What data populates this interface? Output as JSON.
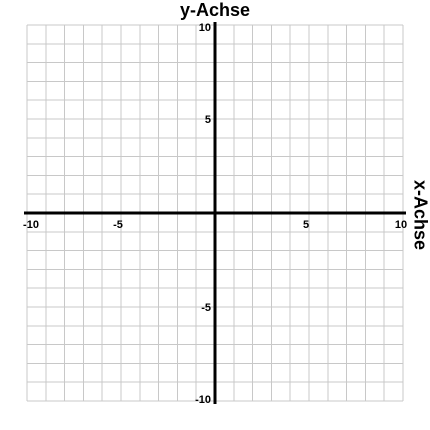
{
  "chart_data": {
    "type": "scatter",
    "title": "",
    "xlabel": "x-Achse",
    "ylabel": "y-Achse",
    "xlim": [
      -10,
      10
    ],
    "ylim": [
      -10,
      10
    ],
    "grid": true,
    "grid_step": 1,
    "x_ticks": [
      {
        "value": -10,
        "label": "-10"
      },
      {
        "value": -5,
        "label": "-5"
      },
      {
        "value": 5,
        "label": "5"
      },
      {
        "value": 10,
        "label": "10"
      }
    ],
    "y_ticks": [
      {
        "value": 10,
        "label": "10"
      },
      {
        "value": 5,
        "label": "5"
      },
      {
        "value": -5,
        "label": "-5"
      },
      {
        "value": -10,
        "label": "-10"
      }
    ],
    "series": [],
    "colors": {
      "grid": "#c8c8c8",
      "axis": "#000000"
    }
  }
}
